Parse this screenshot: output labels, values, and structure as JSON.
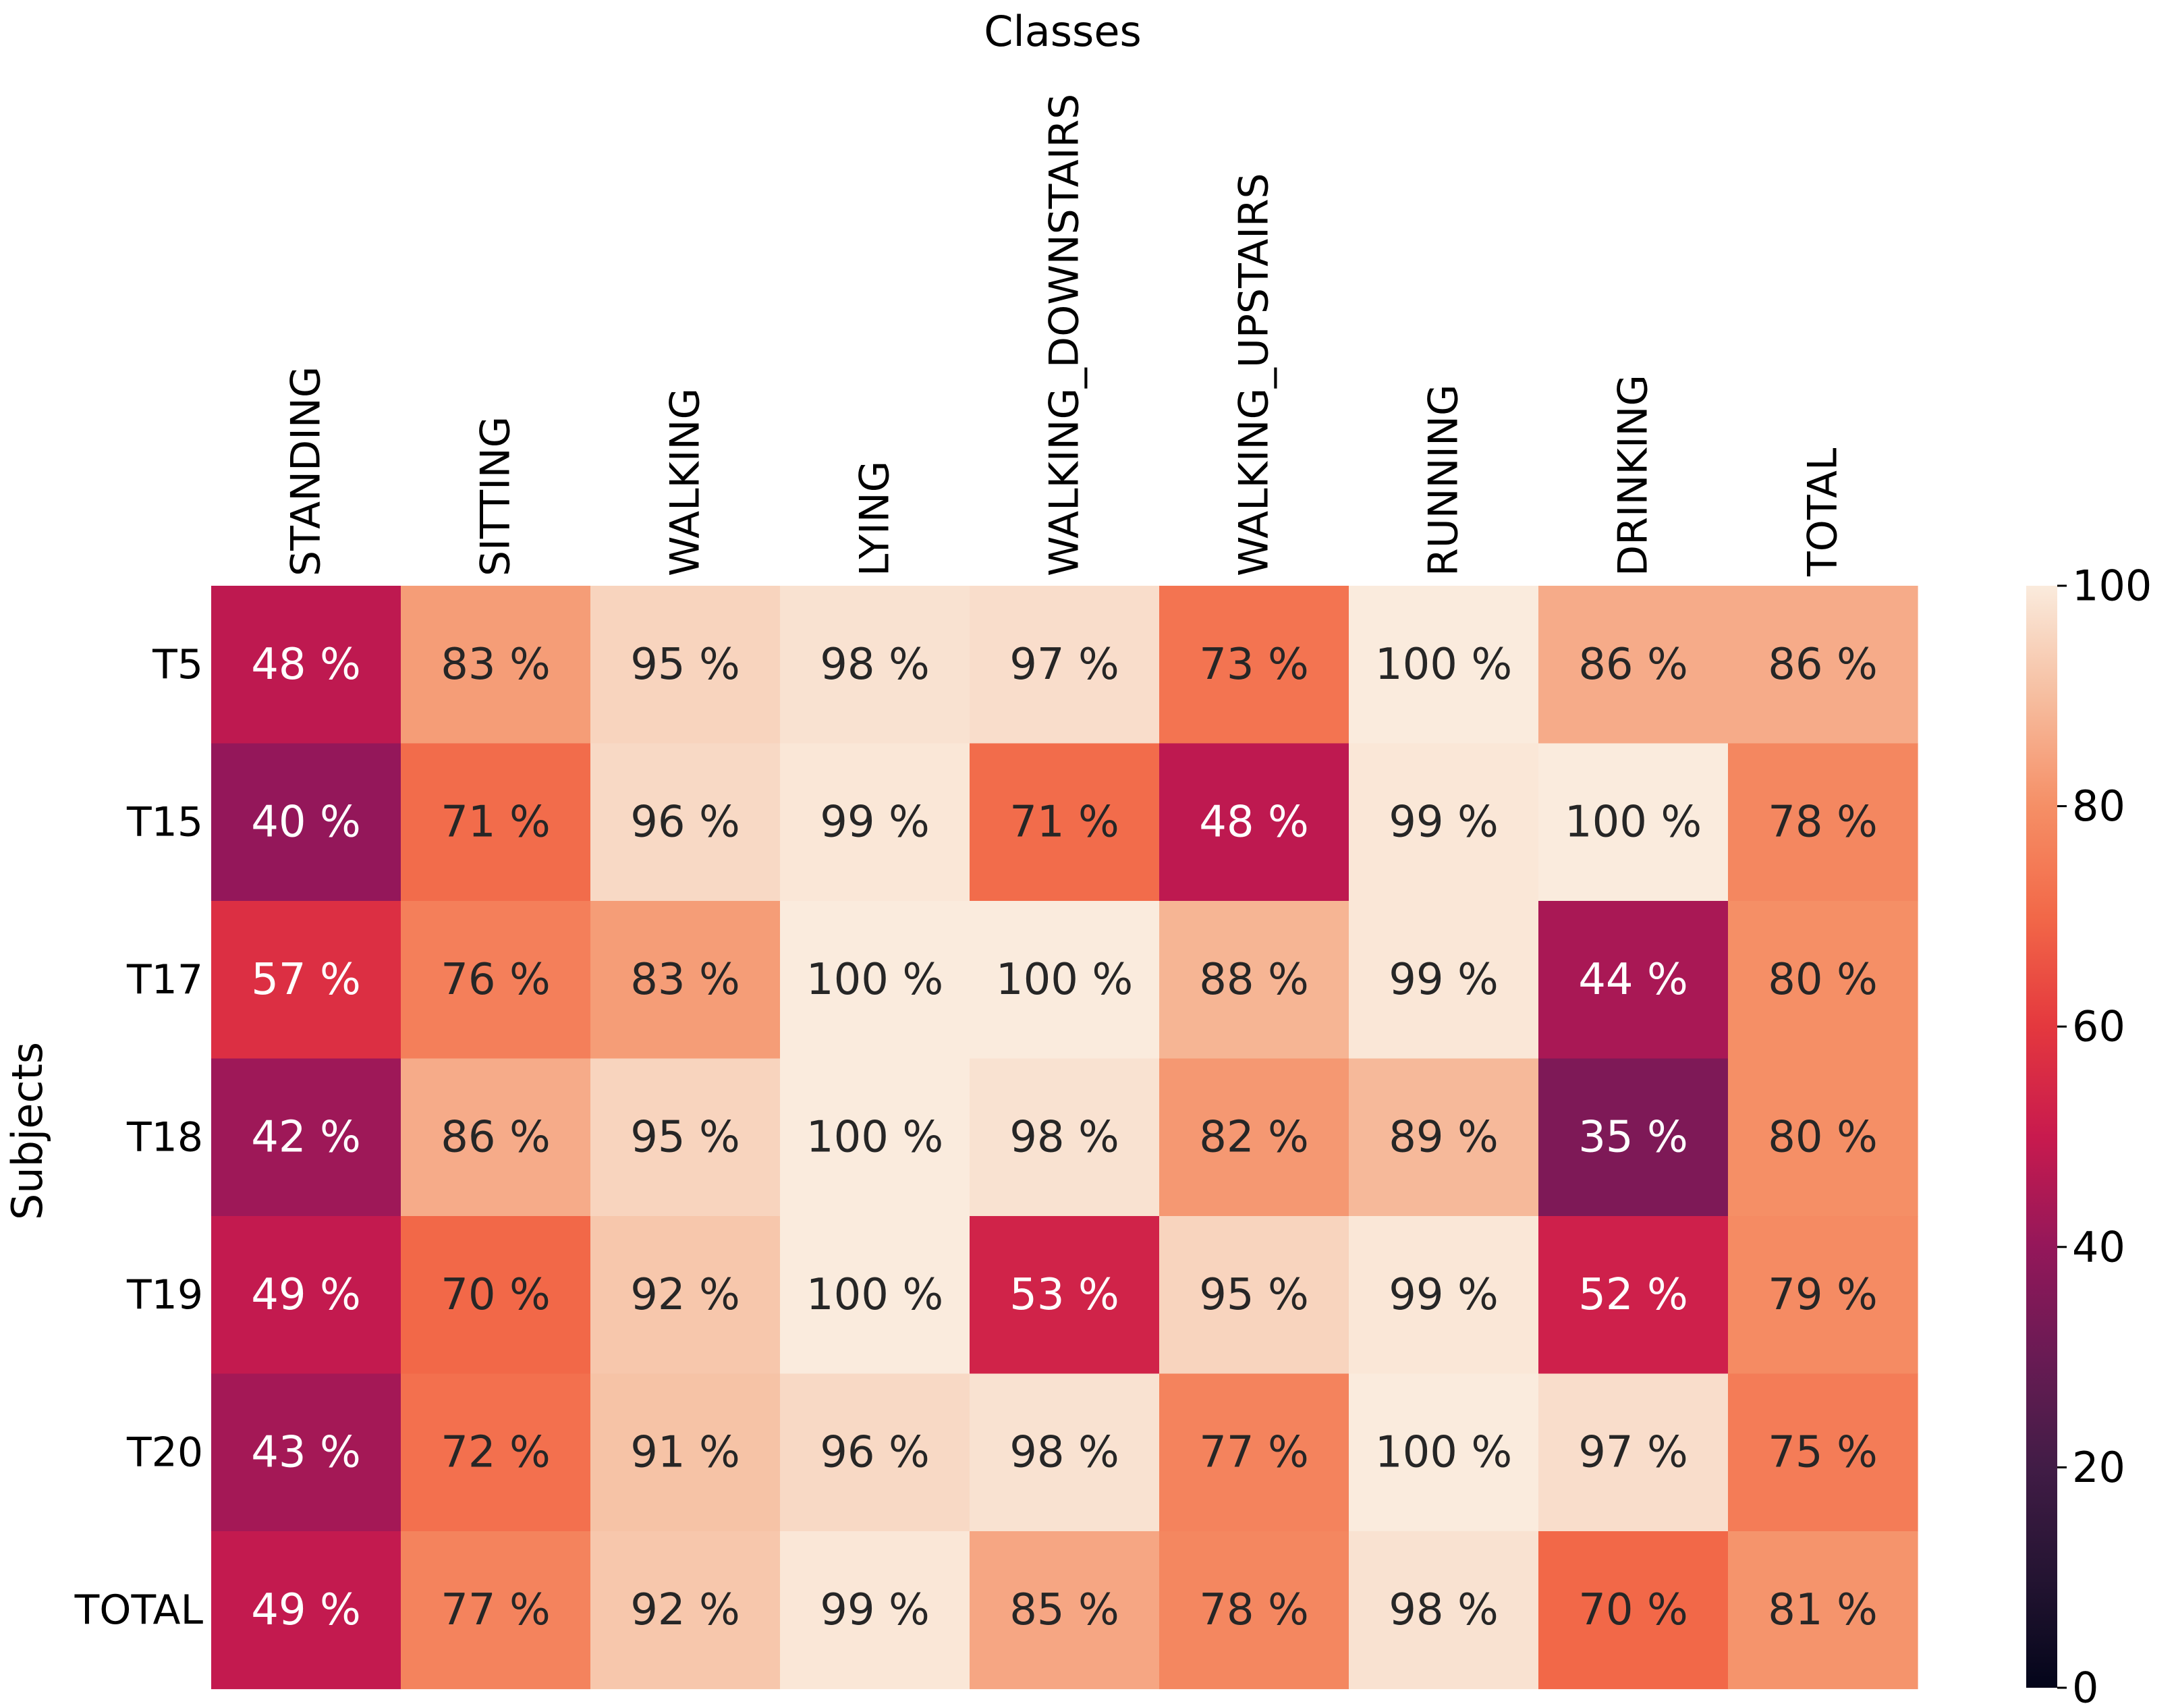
{
  "chart_data": {
    "type": "heatmap",
    "title": "",
    "xlabel": "Classes",
    "ylabel": "Subjects",
    "x_categories": [
      "STANDING",
      "SITTING",
      "WALKING",
      "LYING",
      "WALKING_DOWNSTAIRS",
      "WALKING_UPSTAIRS",
      "RUNNING",
      "DRINKING",
      "TOTAL"
    ],
    "y_categories": [
      "T5",
      "T15",
      "T17",
      "T18",
      "T19",
      "T20",
      "TOTAL"
    ],
    "values": [
      [
        48,
        83,
        95,
        98,
        97,
        73,
        100,
        86,
        86
      ],
      [
        40,
        71,
        96,
        99,
        71,
        48,
        99,
        100,
        78
      ],
      [
        57,
        76,
        83,
        100,
        100,
        88,
        99,
        44,
        80
      ],
      [
        42,
        86,
        95,
        100,
        98,
        82,
        89,
        35,
        80
      ],
      [
        49,
        70,
        92,
        100,
        53,
        95,
        99,
        52,
        79
      ],
      [
        43,
        72,
        91,
        96,
        98,
        77,
        100,
        97,
        75
      ],
      [
        49,
        77,
        92,
        99,
        85,
        78,
        98,
        70,
        81
      ]
    ],
    "value_suffix": " %",
    "colormap": "rocket",
    "colorbar": {
      "range": [
        0,
        100
      ],
      "ticks": [
        0,
        20,
        40,
        60,
        80,
        100
      ]
    }
  }
}
